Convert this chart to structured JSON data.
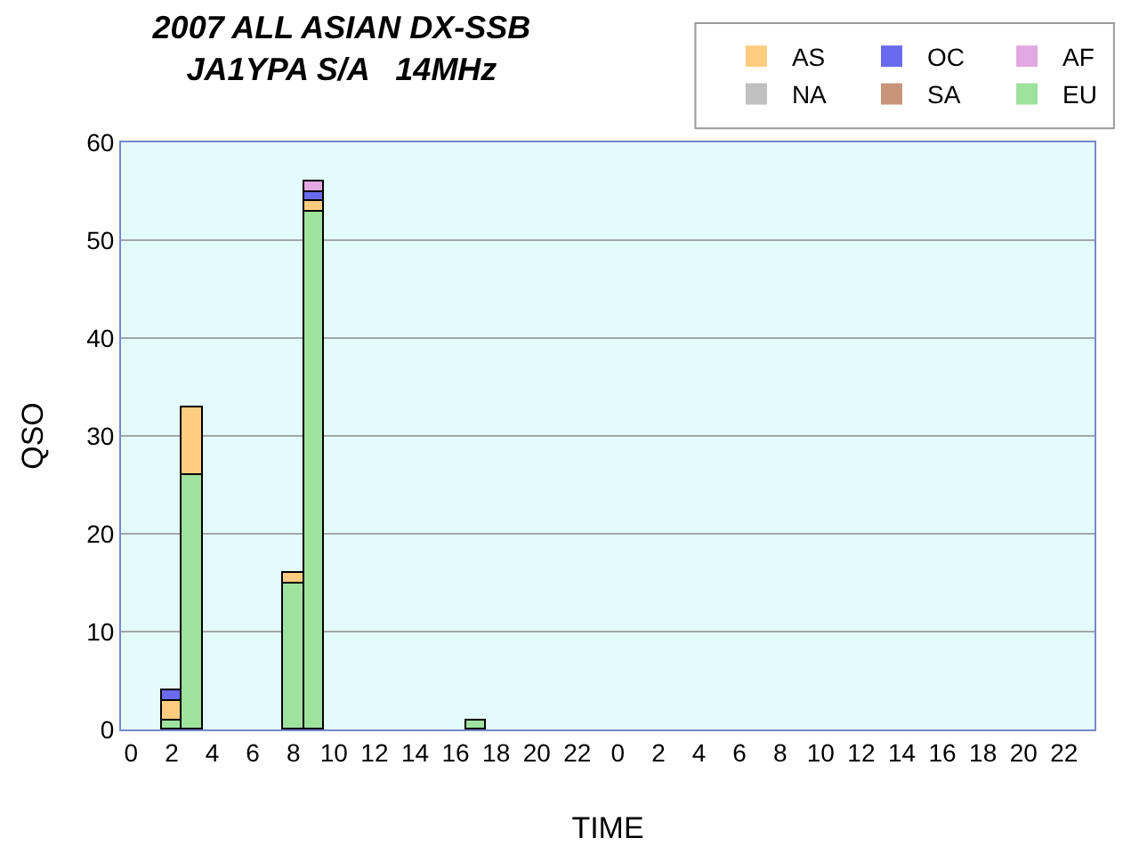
{
  "chart_data": {
    "type": "bar",
    "stacked": true,
    "title": "2007 ALL ASIAN DX-SSB",
    "subtitle": "JA1YPA S/A   14MHz",
    "xlabel": "TIME",
    "ylabel": "QSO",
    "categories": [
      "0",
      null,
      "2",
      null,
      "4",
      null,
      "6",
      null,
      "8",
      null,
      "10",
      null,
      "12",
      null,
      "14",
      null,
      "16",
      null,
      "18",
      null,
      "20",
      null,
      "22",
      null,
      "0",
      null,
      "2",
      null,
      "4",
      null,
      "6",
      null,
      "8",
      null,
      "10",
      null,
      "12",
      null,
      "14",
      null,
      "16",
      null,
      "18",
      null,
      "20",
      null,
      "22",
      null
    ],
    "series": [
      {
        "name": "NA",
        "color": "#c0c0c0",
        "values": [
          0,
          0,
          0,
          0,
          0,
          0,
          0,
          0,
          0,
          0,
          0,
          0,
          0,
          0,
          0,
          0,
          0,
          0,
          0,
          0,
          0,
          0,
          0,
          0,
          0,
          0,
          0,
          0,
          0,
          0,
          0,
          0,
          0,
          0,
          0,
          0,
          0,
          0,
          0,
          0,
          0,
          0,
          0,
          0,
          0,
          0,
          0,
          0
        ]
      },
      {
        "name": "SA",
        "color": "#c8957a",
        "values": [
          0,
          0,
          0,
          0,
          0,
          0,
          0,
          0,
          0,
          0,
          0,
          0,
          0,
          0,
          0,
          0,
          0,
          0,
          0,
          0,
          0,
          0,
          0,
          0,
          0,
          0,
          0,
          0,
          0,
          0,
          0,
          0,
          0,
          0,
          0,
          0,
          0,
          0,
          0,
          0,
          0,
          0,
          0,
          0,
          0,
          0,
          0,
          0
        ]
      },
      {
        "name": "EU",
        "color": "#9ee29e",
        "values": [
          0,
          0,
          1,
          26,
          0,
          0,
          0,
          0,
          15,
          53,
          0,
          0,
          0,
          0,
          0,
          0,
          0,
          1,
          0,
          0,
          0,
          0,
          0,
          0,
          0,
          0,
          0,
          0,
          0,
          0,
          0,
          0,
          0,
          0,
          0,
          0,
          0,
          0,
          0,
          0,
          0,
          0,
          0,
          0,
          0,
          0,
          0,
          0
        ]
      },
      {
        "name": "AS",
        "color": "#ffcc80",
        "values": [
          0,
          0,
          2,
          7,
          0,
          0,
          0,
          0,
          1,
          1,
          0,
          0,
          0,
          0,
          0,
          0,
          0,
          0,
          0,
          0,
          0,
          0,
          0,
          0,
          0,
          0,
          0,
          0,
          0,
          0,
          0,
          0,
          0,
          0,
          0,
          0,
          0,
          0,
          0,
          0,
          0,
          0,
          0,
          0,
          0,
          0,
          0,
          0
        ]
      },
      {
        "name": "OC",
        "color": "#6a6aee",
        "values": [
          0,
          0,
          1,
          0,
          0,
          0,
          0,
          0,
          0,
          1,
          0,
          0,
          0,
          0,
          0,
          0,
          0,
          0,
          0,
          0,
          0,
          0,
          0,
          0,
          0,
          0,
          0,
          0,
          0,
          0,
          0,
          0,
          0,
          0,
          0,
          0,
          0,
          0,
          0,
          0,
          0,
          0,
          0,
          0,
          0,
          0,
          0,
          0
        ]
      },
      {
        "name": "AF",
        "color": "#e2a8e2",
        "values": [
          0,
          0,
          0,
          0,
          0,
          0,
          0,
          0,
          0,
          1,
          0,
          0,
          0,
          0,
          0,
          0,
          0,
          0,
          0,
          0,
          0,
          0,
          0,
          0,
          0,
          0,
          0,
          0,
          0,
          0,
          0,
          0,
          0,
          0,
          0,
          0,
          0,
          0,
          0,
          0,
          0,
          0,
          0,
          0,
          0,
          0,
          0,
          0
        ]
      }
    ],
    "ylim": [
      0,
      60
    ],
    "yticks": [
      0,
      10,
      20,
      30,
      40,
      50,
      60
    ],
    "grid": "y",
    "legend": "top right"
  }
}
